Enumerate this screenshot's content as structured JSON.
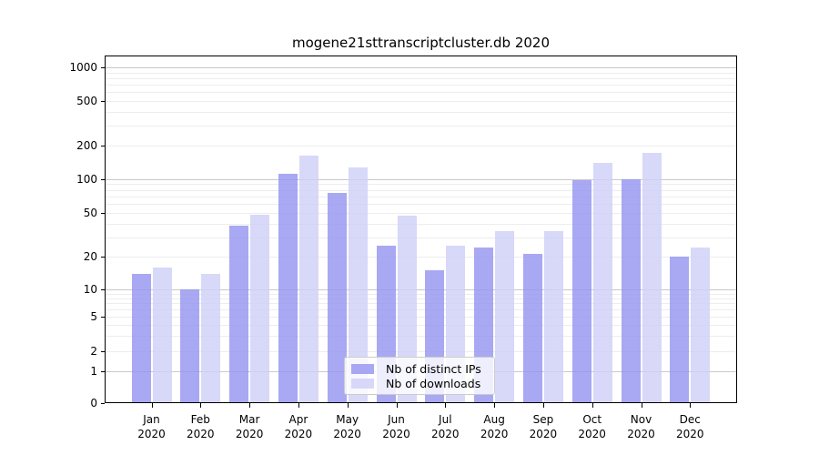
{
  "title": "mogene21sttranscriptcluster.db 2020",
  "legend": {
    "items": [
      {
        "label": "Nb of distinct IPs",
        "color": "rgba(149,149,240,0.82)"
      },
      {
        "label": "Nb of downloads",
        "color": "rgba(207,207,248,0.82)"
      }
    ]
  },
  "colors": {
    "bar_ips": "rgba(149,149,240,0.82)",
    "bar_downloads": "rgba(207,207,248,0.82)",
    "grid_major": "#c9c9c9",
    "grid_minor": "#ededed",
    "axis": "#000000"
  },
  "chart_data": {
    "type": "bar",
    "title": "mogene21sttranscriptcluster.db 2020",
    "categories": [
      "Jan 2020",
      "Feb 2020",
      "Mar 2020",
      "Apr 2020",
      "May 2020",
      "Jun 2020",
      "Jul 2020",
      "Aug 2020",
      "Sep 2020",
      "Oct 2020",
      "Nov 2020",
      "Dec 2020"
    ],
    "series": [
      {
        "name": "Nb of distinct IPs",
        "values": [
          14,
          10,
          38,
          110,
          75,
          25,
          15,
          24,
          21,
          97,
          100,
          20
        ]
      },
      {
        "name": "Nb of downloads",
        "values": [
          16,
          14,
          48,
          160,
          126,
          47,
          25,
          34,
          34,
          140,
          170,
          24
        ]
      }
    ],
    "xlabel": "",
    "ylabel": "",
    "ytick_labels": [
      "1000",
      "500",
      "200",
      "100",
      "50",
      "20",
      "10",
      "5",
      "2",
      "1",
      "0"
    ],
    "yticks": [
      1000,
      500,
      200,
      100,
      50,
      20,
      10,
      5,
      2,
      1,
      0
    ],
    "ylim": [
      0,
      1200
    ],
    "yscale": "log-like (0,1,2,5,10,20,50,100,200,500,1000)",
    "grid": true,
    "legend_position": "lower center"
  }
}
